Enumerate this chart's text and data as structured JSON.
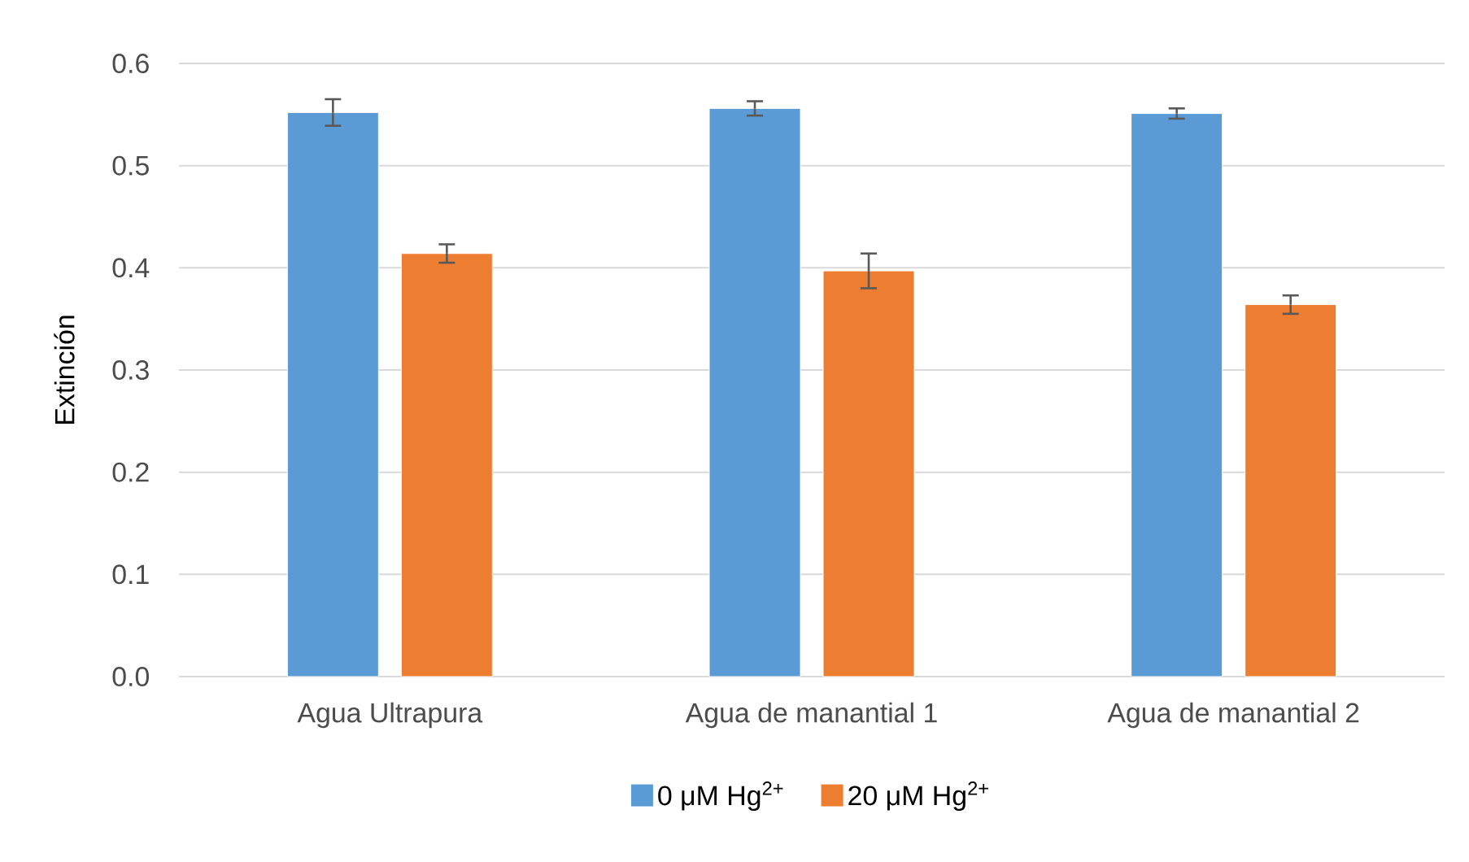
{
  "chart_data": {
    "type": "bar",
    "ylabel": "Extinción",
    "categories": [
      "Agua Ultrapura",
      "Agua de manantial 1",
      "Agua de manantial 2"
    ],
    "series": [
      {
        "name": "0 μM Hg$^{2+}$",
        "color": "#5b9bd5",
        "values": [
          0.552,
          0.556,
          0.551
        ],
        "errors": [
          0.013,
          0.007,
          0.005
        ]
      },
      {
        "name": "20 μM Hg$^{2+}$",
        "color": "#ed7d31",
        "values": [
          0.414,
          0.397,
          0.364
        ],
        "errors": [
          0.009,
          0.017,
          0.009
        ]
      }
    ],
    "ylim": [
      0,
      0.6
    ],
    "yticks": [
      {
        "value": 0,
        "label": "0.0"
      },
      {
        "value": 0.1,
        "label": "0.1"
      },
      {
        "value": 0.2,
        "label": "0.2"
      },
      {
        "value": 0.3,
        "label": "0.3"
      },
      {
        "value": 0.4,
        "label": "0.4"
      },
      {
        "value": 0.5,
        "label": "0.5"
      },
      {
        "value": 0.6,
        "label": "0.6"
      }
    ],
    "grid": "y",
    "legend": "bottom"
  }
}
